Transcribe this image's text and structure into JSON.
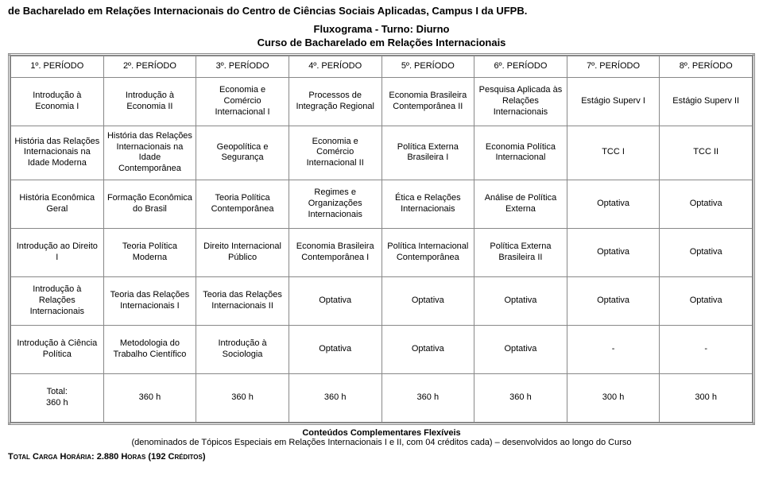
{
  "header": {
    "top_title": "de Bacharelado em Relações Internacionais do Centro de Ciências Sociais Aplicadas, Campus I da UFPB.",
    "flux_line1": "Fluxograma  - Turno: Diurno",
    "flux_line2": "Curso de Bacharelado em Relações Internacionais"
  },
  "periods": [
    "1º. PERÍODO",
    "2º. PERÍODO",
    "3º. PERÍODO",
    "4º. PERÍODO",
    "5º. PERÍODO",
    "6º. PERÍODO",
    "7º. PERÍODO",
    "8º. PERÍODO"
  ],
  "rows": [
    [
      "Introdução à Economia I",
      "Introdução à Economia II",
      "Economia e Comércio Internacional I",
      "Processos de Integração Regional",
      "Economia Brasileira Contemporânea II",
      "Pesquisa Aplicada às Relações Internacionais",
      "Estágio Superv I",
      "Estágio Superv II"
    ],
    [
      "História das Relações Internacionais na Idade Moderna",
      "História das Relações Internacionais na Idade Contemporânea",
      "Geopolítica e Segurança",
      "Economia e Comércio Internacional II",
      "Política Externa Brasileira I",
      "Economia Política Internacional",
      "TCC I",
      "TCC II"
    ],
    [
      "História Econômica Geral",
      "Formação Econômica do Brasil",
      "Teoria Política Contemporânea",
      "Regimes e Organizações Internacionais",
      "Ética e Relações Internacionais",
      "Análise de Política Externa",
      "Optativa",
      "Optativa"
    ],
    [
      "Introdução ao Direito I",
      "Teoria Política Moderna",
      "Direito Internacional Público",
      "Economia Brasileira Contemporânea I",
      "Política Internacional Contemporânea",
      "Política Externa Brasileira II",
      "Optativa",
      "Optativa"
    ],
    [
      "Introdução à Relações Internacionais",
      "Teoria das Relações Internacionais I",
      "Teoria das Relações Internacionais II",
      "Optativa",
      "Optativa",
      "Optativa",
      "Optativa",
      "Optativa"
    ],
    [
      "Introdução à Ciência Política",
      "Metodologia do Trabalho Científico",
      "Introdução à Sociologia",
      "Optativa",
      "Optativa",
      "Optativa",
      "-",
      "-"
    ]
  ],
  "totals": {
    "label": "Total:",
    "first": "360 h",
    "cells": [
      "360 h",
      "360 h",
      "360 h",
      "360 h",
      "360 h",
      "300 h",
      "300 h"
    ]
  },
  "footer": {
    "line1": "Conteúdos Complementares Flexíveis",
    "line2": "(denominados de Tópicos Especiais em Relações Internacionais I e II, com 04 créditos cada) – desenvolvidos ao longo do Curso",
    "total_label": "Total Carga Horária:",
    "total_value": "2.880 Horas (192 Créditos)"
  }
}
